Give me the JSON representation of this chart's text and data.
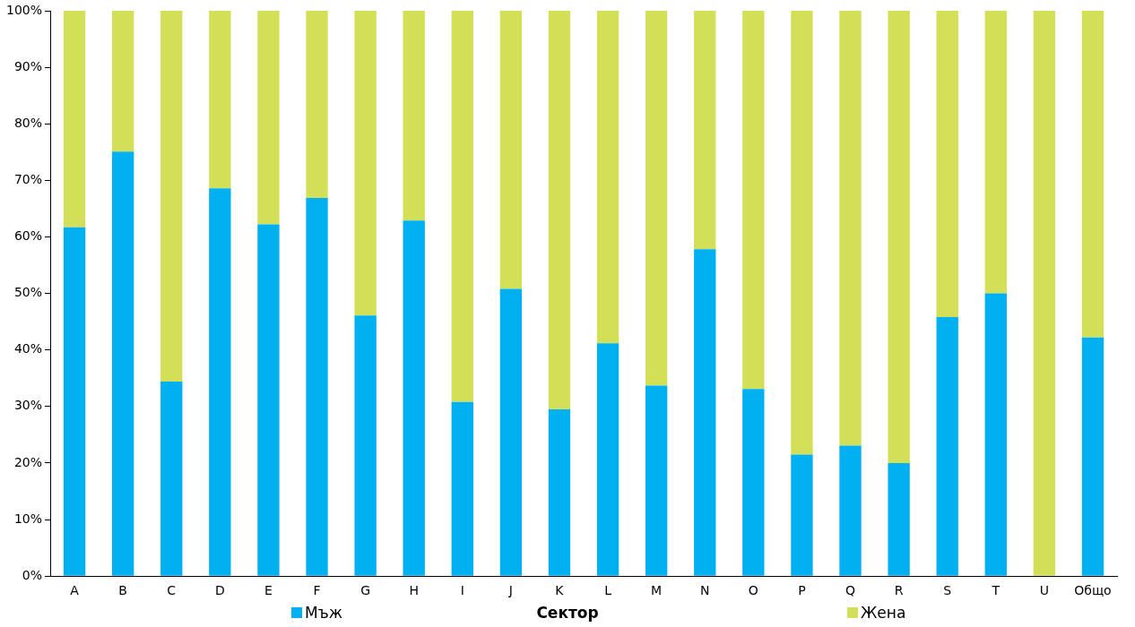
{
  "chart_data": {
    "type": "bar",
    "stacked": true,
    "xlabel": "Сектор",
    "categories": [
      "A",
      "B",
      "C",
      "D",
      "E",
      "F",
      "G",
      "H",
      "I",
      "J",
      "K",
      "L",
      "M",
      "N",
      "O",
      "P",
      "Q",
      "R",
      "S",
      "T",
      "U",
      "Общо"
    ],
    "series": [
      {
        "name": "Мъж",
        "color": "#00b0f0",
        "values": [
          61.7,
          75.1,
          34.4,
          68.6,
          62.2,
          66.9,
          46.1,
          62.9,
          30.8,
          50.8,
          29.5,
          41.2,
          33.7,
          57.8,
          33.1,
          21.5,
          23.1,
          20,
          45.8,
          50,
          0,
          42.2
        ]
      },
      {
        "name": "Жена",
        "color": "#d4df58",
        "values": [
          38.3,
          24.9,
          65.6,
          31.4,
          37.8,
          33.1,
          53.9,
          37.1,
          69.2,
          49.2,
          70.5,
          58.8,
          66.3,
          42.2,
          66.9,
          78.5,
          76.9,
          80,
          54.2,
          50,
          100,
          57.8
        ]
      }
    ],
    "ylim": [
      0,
      100
    ],
    "yticks": [
      {
        "value": 0,
        "label": "0%"
      },
      {
        "value": 10,
        "label": "10%"
      },
      {
        "value": 20,
        "label": "20%"
      },
      {
        "value": 30,
        "label": "30%"
      },
      {
        "value": 40,
        "label": "40%"
      },
      {
        "value": 50,
        "label": "50%"
      },
      {
        "value": 60,
        "label": "60%"
      },
      {
        "value": 70,
        "label": "70%"
      },
      {
        "value": 80,
        "label": "80%"
      },
      {
        "value": 90,
        "label": "90%"
      },
      {
        "value": 100,
        "label": "100%"
      }
    ],
    "grid": false,
    "legend": "bottom"
  }
}
